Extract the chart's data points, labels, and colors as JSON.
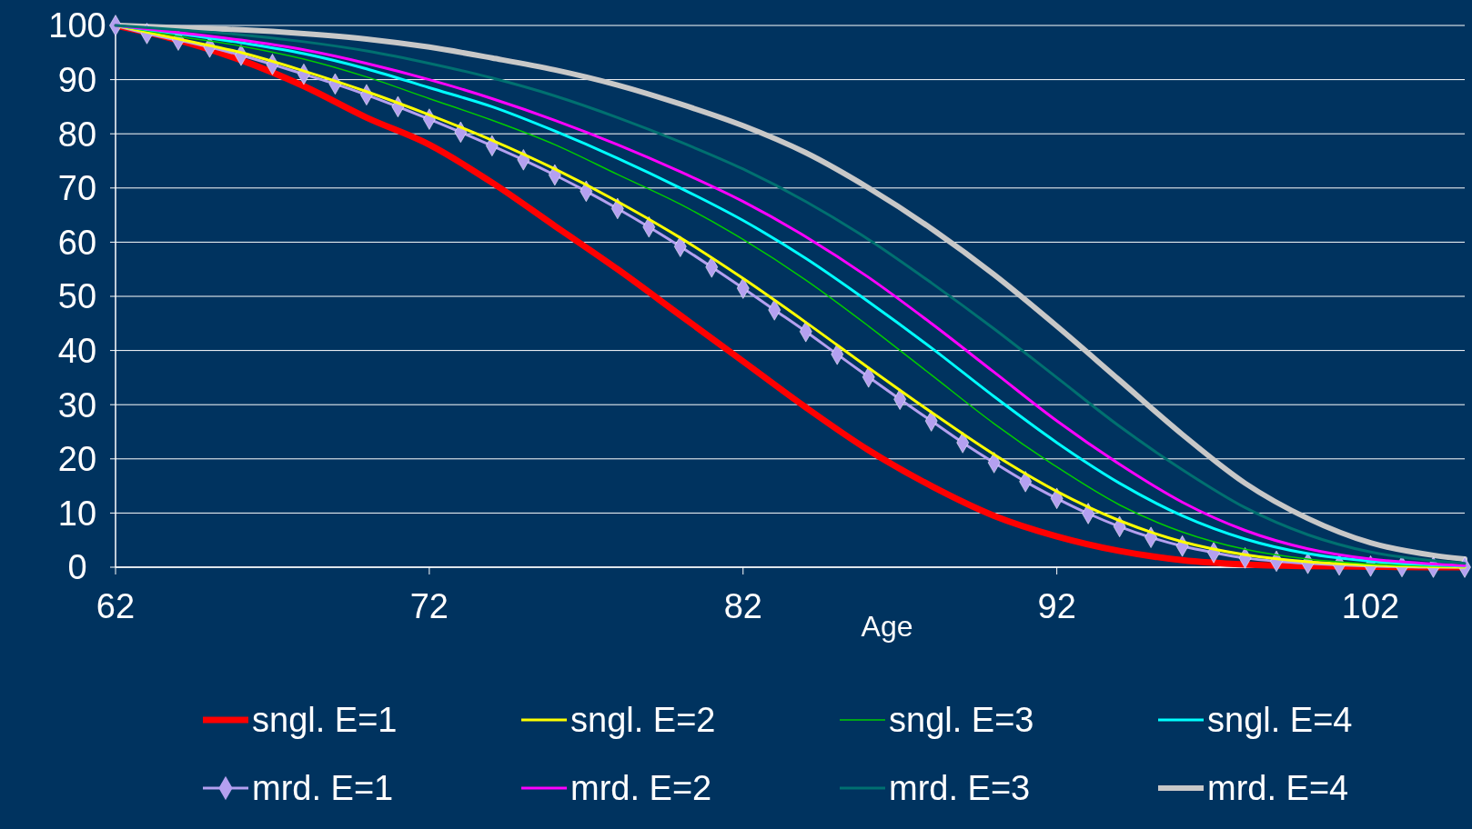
{
  "chart_data": {
    "type": "line",
    "xlabel": "Age",
    "xlim": [
      62,
      105
    ],
    "xticks": [
      62,
      72,
      82,
      92,
      102
    ],
    "ylim": [
      0,
      100
    ],
    "yticks": [
      0,
      10,
      20,
      30,
      40,
      50,
      60,
      70,
      80,
      90,
      100
    ],
    "grid": "y",
    "legend": "bottom",
    "series": [
      {
        "name": "sngl. E=1",
        "color": "#ff0000",
        "x": [
          62,
          64,
          66,
          68,
          70,
          72,
          74,
          76,
          78,
          80,
          82,
          84,
          86,
          88,
          90,
          92,
          94,
          96,
          98,
          100,
          102,
          104,
          105
        ],
        "values": [
          100,
          97.3,
          93.6,
          88.8,
          83,
          78,
          71,
          63,
          55,
          46.5,
          38,
          29.5,
          21.6,
          15,
          9.5,
          5.7,
          3,
          1.3,
          0.5,
          0.2,
          0.1,
          0,
          0
        ]
      },
      {
        "name": "sngl. E=2",
        "color": "#ffff00",
        "x": [
          62,
          64,
          66,
          68,
          70,
          72,
          74,
          76,
          78,
          80,
          82,
          84,
          86,
          88,
          90,
          92,
          94,
          96,
          98,
          100,
          102,
          104,
          105
        ],
        "values": [
          100,
          97.5,
          95,
          91.6,
          87.8,
          83.5,
          78.8,
          73.5,
          67.5,
          60.8,
          53.3,
          45.2,
          36.8,
          28.6,
          20.8,
          14,
          8.6,
          4.7,
          2.3,
          1,
          0.4,
          0.1,
          0
        ]
      },
      {
        "name": "sngl. E=3",
        "color": "#00cc00",
        "x": [
          62,
          64,
          66,
          68,
          70,
          72,
          74,
          76,
          78,
          80,
          82,
          84,
          86,
          88,
          90,
          92,
          94,
          96,
          98,
          100,
          102,
          104,
          105
        ],
        "values": [
          100,
          98,
          96.2,
          93.8,
          90.5,
          86.5,
          82.5,
          78,
          72.5,
          67,
          60.5,
          53,
          44.5,
          35.5,
          26.5,
          18.5,
          11.5,
          6.5,
          3.3,
          1.5,
          0.6,
          0.2,
          0.1
        ]
      },
      {
        "name": "sngl. E=4",
        "color": "#00ffff",
        "x": [
          62,
          64,
          66,
          68,
          70,
          72,
          74,
          76,
          78,
          80,
          82,
          84,
          86,
          88,
          90,
          92,
          94,
          96,
          98,
          100,
          102,
          104,
          105
        ],
        "values": [
          100,
          98.5,
          96.8,
          94.8,
          92,
          88.5,
          85,
          80.5,
          75.5,
          70,
          64,
          57,
          49,
          40.5,
          31.5,
          23,
          15.5,
          9.5,
          5.2,
          2.5,
          1.1,
          0.4,
          0.2
        ]
      },
      {
        "name": "mrd. E=1",
        "color": "#b4a0f0",
        "marker": "diamond",
        "x": [
          62,
          63,
          64,
          65,
          66,
          67,
          68,
          69,
          70,
          71,
          72,
          73,
          74,
          75,
          76,
          77,
          78,
          79,
          80,
          81,
          82,
          83,
          84,
          85,
          86,
          87,
          88,
          89,
          90,
          91,
          92,
          93,
          94,
          95,
          96,
          97,
          98,
          99,
          100,
          101,
          102,
          103,
          104,
          105
        ],
        "values": [
          100,
          98.5,
          97.3,
          96,
          94.5,
          92.8,
          91,
          89.2,
          87.2,
          85,
          82.7,
          80.3,
          77.8,
          75.2,
          72.4,
          69.4,
          66.2,
          62.8,
          59.2,
          55.4,
          51.5,
          47.5,
          43.5,
          39.3,
          35.1,
          31,
          27,
          23,
          19.3,
          15.8,
          12.7,
          9.9,
          7.5,
          5.5,
          3.9,
          2.7,
          1.7,
          1.1,
          0.7,
          0.4,
          0.2,
          0.1,
          0,
          0
        ]
      },
      {
        "name": "mrd. E=2",
        "color": "#ff00ff",
        "x": [
          62,
          64,
          66,
          68,
          70,
          72,
          74,
          76,
          78,
          80,
          82,
          84,
          86,
          88,
          90,
          92,
          94,
          96,
          98,
          100,
          102,
          104,
          105
        ],
        "values": [
          100,
          98.7,
          97.3,
          95.5,
          93,
          90,
          86.5,
          82.5,
          78,
          73,
          67.5,
          61,
          53.5,
          45,
          36,
          27,
          19,
          12,
          6.8,
          3.4,
          1.5,
          0.6,
          0.3
        ]
      },
      {
        "name": "mrd. E=3",
        "color": "#007070",
        "x": [
          62,
          64,
          66,
          68,
          70,
          72,
          74,
          76,
          78,
          80,
          82,
          84,
          86,
          88,
          90,
          92,
          94,
          96,
          98,
          100,
          102,
          104,
          105
        ],
        "values": [
          100,
          99.2,
          98.3,
          97,
          95.3,
          93,
          90.3,
          87,
          83,
          78.5,
          73.5,
          67.5,
          60.5,
          52.5,
          44,
          35,
          26,
          18,
          11,
          6,
          2.8,
          1.2,
          0.7
        ]
      },
      {
        "name": "mrd. E=4",
        "color": "#c8c8c8",
        "x": [
          62,
          64,
          66,
          68,
          70,
          72,
          74,
          76,
          78,
          80,
          82,
          84,
          86,
          88,
          90,
          92,
          94,
          96,
          98,
          100,
          102,
          104,
          105
        ],
        "values": [
          100,
          99.6,
          99.2,
          98.5,
          97.5,
          96,
          94,
          91.8,
          89,
          85.5,
          81.5,
          76.5,
          70,
          62.5,
          54,
          44.5,
          34.5,
          24.5,
          15.5,
          9,
          4.5,
          2.2,
          1.5
        ]
      }
    ]
  }
}
